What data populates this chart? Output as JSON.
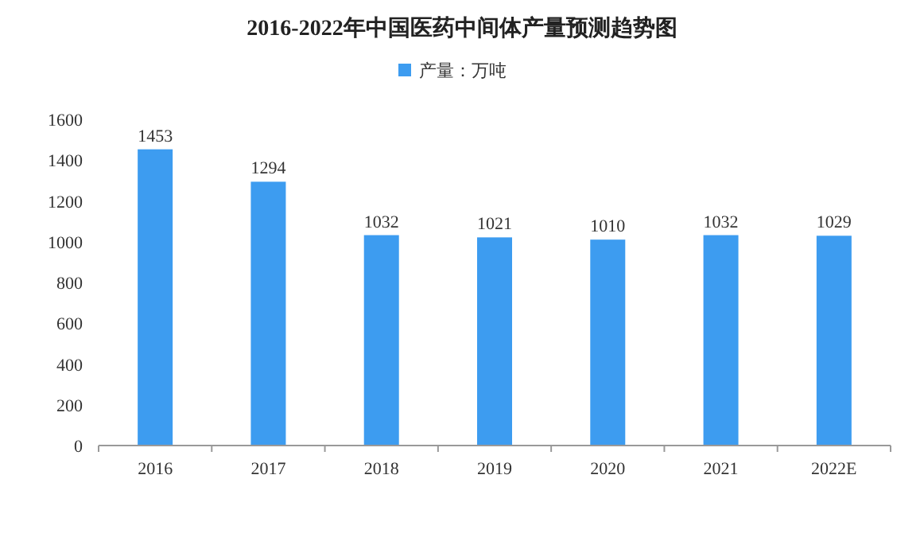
{
  "chart_data": {
    "type": "bar",
    "title": "2016-2022年中国医药中间体产量预测趋势图",
    "categories": [
      "2016",
      "2017",
      "2018",
      "2019",
      "2020",
      "2021",
      "2022E"
    ],
    "series": [
      {
        "name": "产量：万吨",
        "color": "#3d9cf0",
        "values": [
          1453,
          1294,
          1032,
          1021,
          1010,
          1032,
          1029
        ]
      }
    ],
    "ylim": [
      0,
      1600
    ],
    "yticks": [
      0,
      200,
      400,
      600,
      800,
      1000,
      1200,
      1400,
      1600
    ],
    "data_labels": true,
    "legend": "top",
    "grid": false
  }
}
